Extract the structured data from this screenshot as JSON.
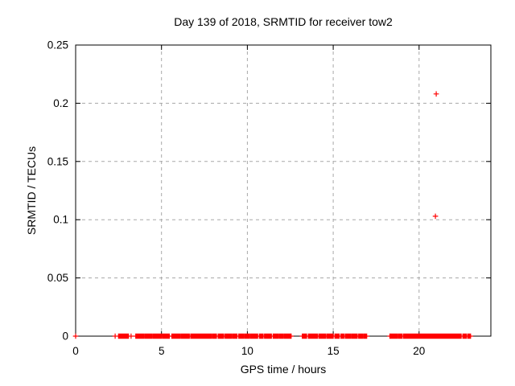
{
  "chart_data": {
    "type": "scatter",
    "title": "Day 139 of 2018, SRMTID for receiver tow2",
    "xlabel": "GPS time / hours",
    "ylabel": "SRMTID / TECUs",
    "xlim": [
      0,
      24.18
    ],
    "ylim": [
      0,
      0.25
    ],
    "xticks": [
      0,
      5,
      10,
      15,
      20
    ],
    "xtick_labels": [
      "0",
      "5",
      "10",
      "15",
      "20"
    ],
    "yticks": [
      0,
      0.05,
      0.1,
      0.15,
      0.2,
      0.25
    ],
    "ytick_labels": [
      "0",
      "0.05",
      "0.1",
      "0.15",
      "0.2",
      "0.25"
    ],
    "grid": true,
    "grid_color": "#a8a8a8",
    "axis_color": "#000000",
    "marker": "plus",
    "marker_color": "#ff0000",
    "legend": "none",
    "points": [
      [
        0,
        0
      ],
      [
        2.3,
        0
      ],
      [
        3.23,
        0
      ],
      [
        20.95,
        0.103
      ],
      [
        21.0,
        0.208
      ]
    ],
    "baseline_y": 0,
    "baseline_segments": [
      [
        2.5,
        2.8
      ],
      [
        2.84,
        3.08
      ],
      [
        3.5,
        3.98
      ],
      [
        4.04,
        4.46
      ],
      [
        4.52,
        5.0
      ],
      [
        5.06,
        5.32
      ],
      [
        5.36,
        5.46
      ],
      [
        5.6,
        6.1
      ],
      [
        6.16,
        6.62
      ],
      [
        6.7,
        7.0
      ],
      [
        7.04,
        7.58
      ],
      [
        7.64,
        7.9
      ],
      [
        7.96,
        8.2
      ],
      [
        8.3,
        8.62
      ],
      [
        8.7,
        9.1
      ],
      [
        9.16,
        9.4
      ],
      [
        9.5,
        9.78
      ],
      [
        9.84,
        10.1
      ],
      [
        10.16,
        10.6
      ],
      [
        10.7,
        10.92
      ],
      [
        11.0,
        11.4
      ],
      [
        11.5,
        11.78
      ],
      [
        11.84,
        12.1
      ],
      [
        12.16,
        12.55
      ],
      [
        13.2,
        13.45
      ],
      [
        13.55,
        14.08
      ],
      [
        14.16,
        14.55
      ],
      [
        14.62,
        15.0
      ],
      [
        15.1,
        15.35
      ],
      [
        15.45,
        15.62
      ],
      [
        15.7,
        16.0
      ],
      [
        16.06,
        16.4
      ],
      [
        16.48,
        16.7
      ],
      [
        16.76,
        16.95
      ],
      [
        18.3,
        18.76
      ],
      [
        18.82,
        19.02
      ],
      [
        19.1,
        22.45
      ],
      [
        22.55,
        22.75
      ],
      [
        22.83,
        23.0
      ]
    ]
  }
}
